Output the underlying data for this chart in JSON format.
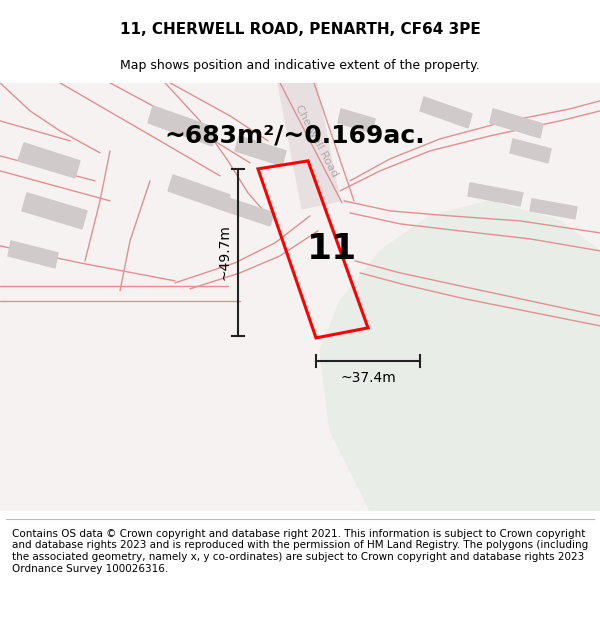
{
  "title": "11, CHERWELL ROAD, PENARTH, CF64 3PE",
  "subtitle": "Map shows position and indicative extent of the property.",
  "footnote": "Contains OS data © Crown copyright and database right 2021. This information is subject to Crown copyright and database rights 2023 and is reproduced with the permission of HM Land Registry. The polygons (including the associated geometry, namely x, y co-ordinates) are subject to Crown copyright and database rights 2023 Ordnance Survey 100026316.",
  "area_label": "~683m²/~0.169ac.",
  "width_label": "~37.4m",
  "height_label": "~49.7m",
  "plot_number": "11",
  "bg_color": "#f7f2f2",
  "green_color": "#e8ede8",
  "building_color": "#d0caca",
  "road_fill_color": "#efe8e8",
  "road_line_color": "#e09090",
  "cherwell_road_color": "#e8e0e0",
  "plot_edge_color": "#ff0000",
  "plot_linewidth": 2.2,
  "dim_color": "#222222",
  "title_fontsize": 11,
  "subtitle_fontsize": 9,
  "area_fontsize": 18,
  "plot_num_fontsize": 26,
  "dim_fontsize": 10,
  "footnote_fontsize": 7.5,
  "road_label_color": "#b0a8a8",
  "road_label_fontsize": 8
}
